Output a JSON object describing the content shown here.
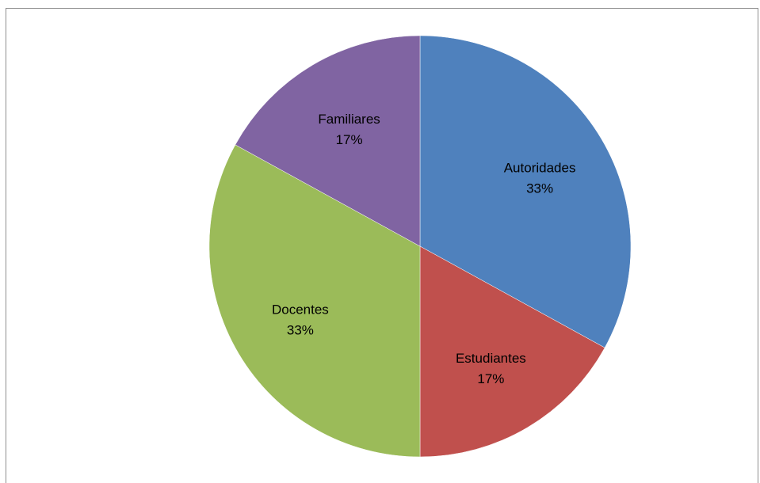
{
  "chart_data": {
    "type": "pie",
    "title": "",
    "start_angle_deg": 0,
    "direction": "clockwise",
    "slices": [
      {
        "label": "Autoridades",
        "value": 33,
        "value_label": "33%",
        "color": "#4f81bd"
      },
      {
        "label": "Estudiantes",
        "value": 17,
        "value_label": "17%",
        "color": "#c0504d"
      },
      {
        "label": "Docentes",
        "value": 33,
        "value_label": "33%",
        "color": "#9bbb59"
      },
      {
        "label": "Familiares",
        "value": 17,
        "value_label": "17%",
        "color": "#8064a2"
      }
    ]
  }
}
